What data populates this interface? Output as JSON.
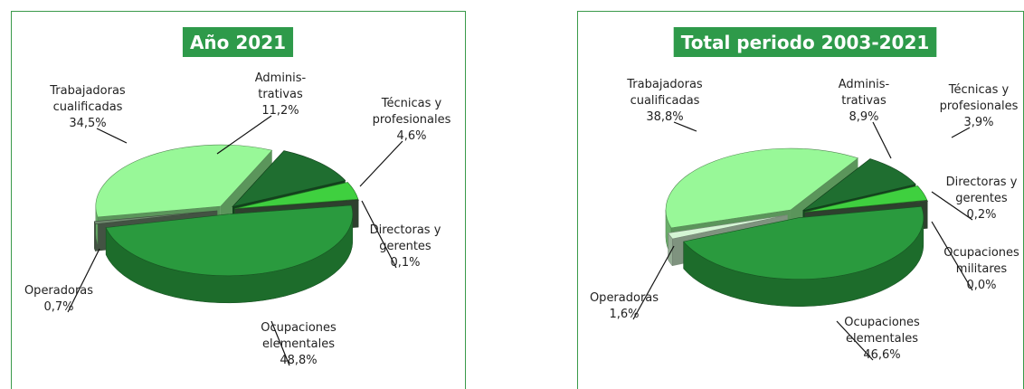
{
  "chart_data": [
    {
      "type": "pie",
      "title": "Año 2021",
      "categories": [
        [
          "Trabajadoras",
          "cualificadas"
        ],
        [
          "Adminis-",
          "trativas"
        ],
        [
          "Técnicas y",
          "profesionales"
        ],
        [
          "Directoras y",
          "gerentes"
        ],
        [
          "Ocupaciones",
          "elementales"
        ],
        [
          "Operadoras"
        ]
      ],
      "values": [
        34.5,
        11.2,
        4.6,
        0.1,
        48.8,
        0.7
      ],
      "value_labels": [
        "34,5%",
        "11,2%",
        "4,6%",
        "0,1%",
        "48,8%",
        "0,7%"
      ],
      "colors": [
        "#98f898",
        "#1f6e30",
        "#3fd03f",
        "#4d6b4d",
        "#2a9a3e",
        "#6f8a6f"
      ]
    },
    {
      "type": "pie",
      "title": "Total periodo 2003-2021",
      "categories": [
        [
          "Trabajadoras",
          "cualificadas"
        ],
        [
          "Adminis-",
          "trativas"
        ],
        [
          "Técnicas y",
          "profesionales"
        ],
        [
          "Directoras y",
          "gerentes"
        ],
        [
          "Ocupaciones",
          "militares"
        ],
        [
          "Ocupaciones",
          "elementales"
        ],
        [
          "Operadoras"
        ]
      ],
      "values": [
        38.8,
        8.9,
        3.9,
        0.2,
        0.0,
        46.6,
        1.6
      ],
      "value_labels": [
        "38,8%",
        "8,9%",
        "3,9%",
        "0,2%",
        "0,0%",
        "46,6%",
        "1,6%"
      ],
      "colors": [
        "#98f898",
        "#1f6e30",
        "#3fd03f",
        "#4d6b4d",
        "#2f4f2f",
        "#2a9a3e",
        "#d4f5d4"
      ]
    }
  ]
}
